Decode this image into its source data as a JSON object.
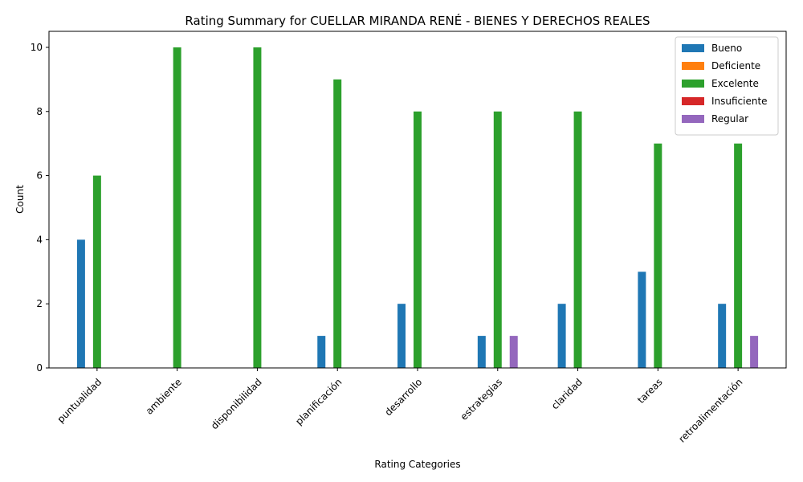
{
  "chart_data": {
    "type": "bar",
    "title": "Rating Summary for CUELLAR MIRANDA RENÉ - BIENES Y DERECHOS REALES",
    "xlabel": "Rating Categories",
    "ylabel": "Count",
    "ylim": [
      0,
      10.5
    ],
    "yticks": [
      0,
      2,
      4,
      6,
      8,
      10
    ],
    "legend_position": "top-right",
    "grid": false,
    "categories": [
      "puntualidad",
      "ambiente",
      "disponibilidad",
      "planificación",
      "desarrollo",
      "estrategias",
      "claridad",
      "tareas",
      "retroalimentación"
    ],
    "series": [
      {
        "name": "Bueno",
        "color": "#1f77b4",
        "values": [
          4,
          0,
          0,
          1,
          2,
          1,
          2,
          3,
          2
        ]
      },
      {
        "name": "Deficiente",
        "color": "#ff7f0e",
        "values": [
          0,
          0,
          0,
          0,
          0,
          0,
          0,
          0,
          0
        ]
      },
      {
        "name": "Excelente",
        "color": "#2ca02c",
        "values": [
          6,
          10,
          10,
          9,
          8,
          8,
          8,
          7,
          7
        ]
      },
      {
        "name": "Insuficiente",
        "color": "#d62728",
        "values": [
          0,
          0,
          0,
          0,
          0,
          0,
          0,
          0,
          0
        ]
      },
      {
        "name": "Regular",
        "color": "#9467bd",
        "values": [
          0,
          0,
          0,
          0,
          0,
          1,
          0,
          0,
          1
        ]
      }
    ]
  }
}
